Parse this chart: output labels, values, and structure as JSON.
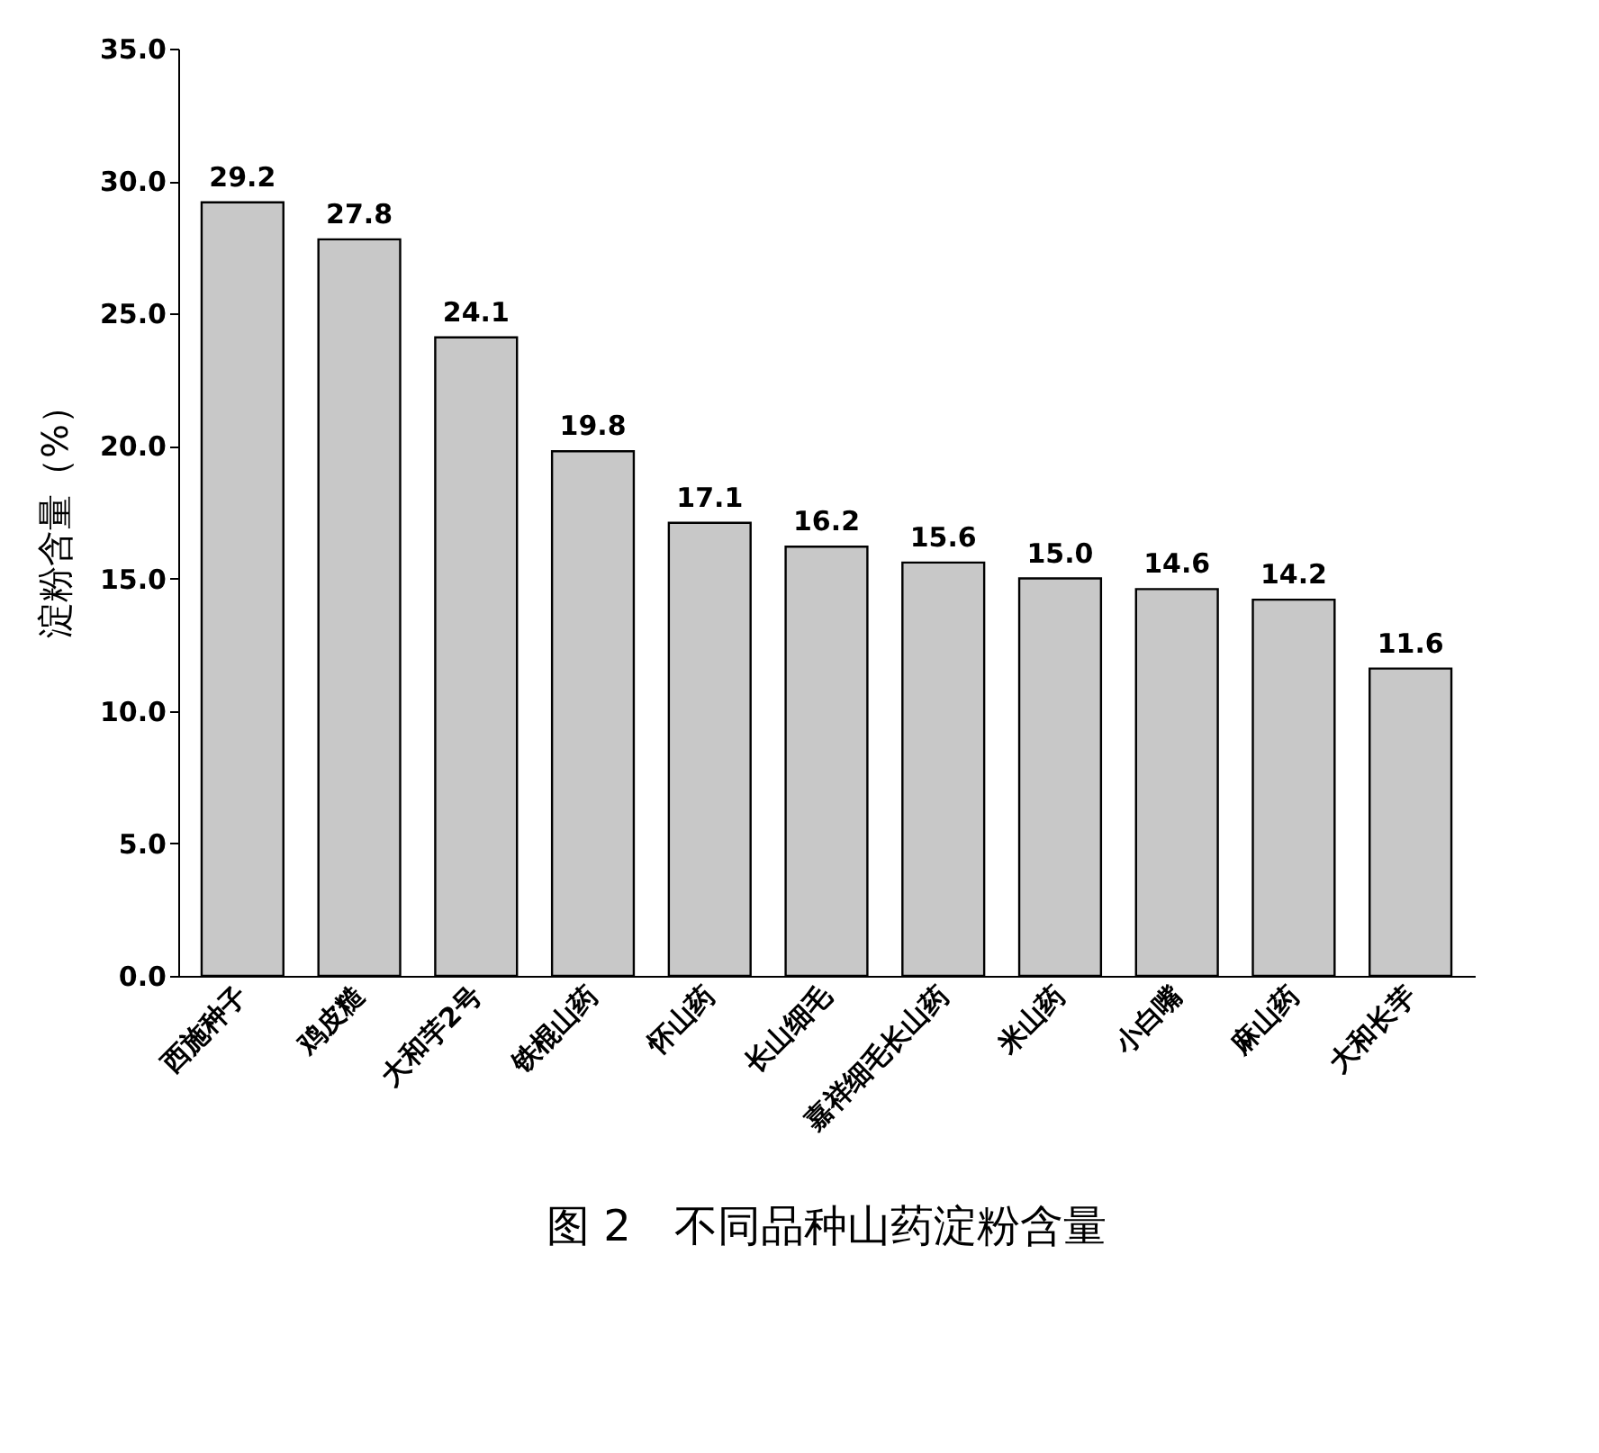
{
  "chart_data": {
    "type": "bar",
    "title": "图 2　不同品种山药淀粉含量",
    "ylabel": "淀粉含量（%）",
    "categories": [
      "西施种子",
      "鸡皮糙",
      "大和芋2号",
      "铁棍山药",
      "怀山药",
      "长山细毛",
      "嘉祥细毛长山药",
      "米山药",
      "小白嘴",
      "麻山药",
      "大和长芋"
    ],
    "values": [
      29.2,
      27.8,
      24.1,
      19.8,
      17.1,
      16.2,
      15.6,
      15.0,
      14.6,
      14.2,
      11.6
    ],
    "value_labels": [
      "29.2",
      "27.8",
      "24.1",
      "19.8",
      "17.1",
      "16.2",
      "15.6",
      "15.0",
      "14.6",
      "14.2",
      "11.6"
    ],
    "color": "#c8c8c8",
    "ylim": [
      0,
      35
    ],
    "yticks": [
      {
        "value": 0,
        "label": "0.0"
      },
      {
        "value": 5,
        "label": "5.0"
      },
      {
        "value": 10,
        "label": "10.0"
      },
      {
        "value": 15,
        "label": "15.0"
      },
      {
        "value": 20,
        "label": "20.0"
      },
      {
        "value": 25,
        "label": "25.0"
      },
      {
        "value": 30,
        "label": "30.0"
      },
      {
        "value": 35,
        "label": "35.0"
      }
    ],
    "grid": false
  }
}
